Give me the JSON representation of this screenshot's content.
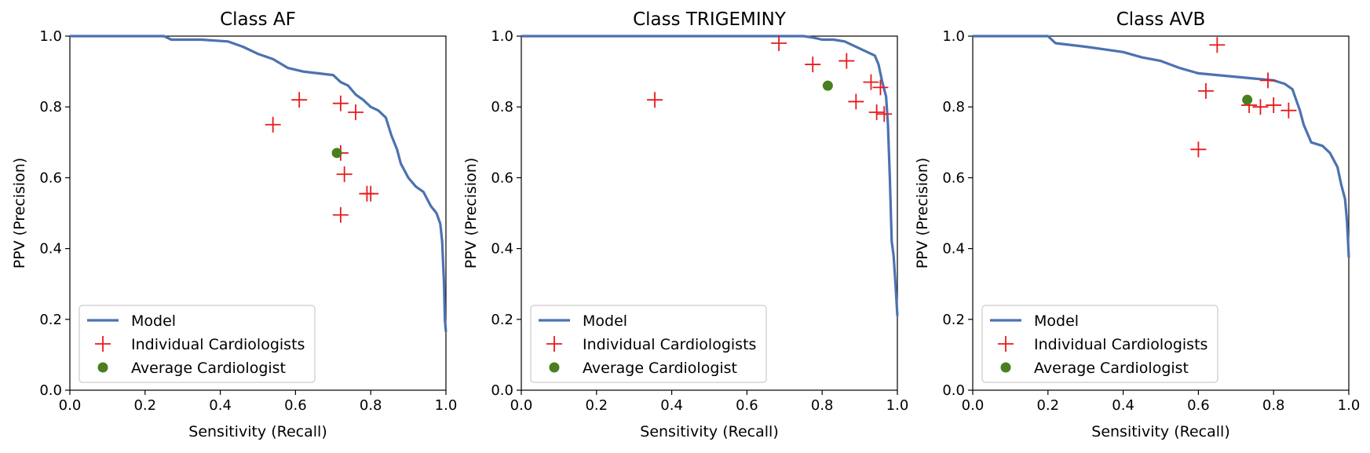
{
  "chart_data": [
    {
      "type": "line",
      "title": "Class AF",
      "xlabel": "Sensitivity (Recall)",
      "ylabel": "PPV (Precision)",
      "xlim": [
        0,
        1
      ],
      "ylim": [
        0,
        1
      ],
      "xticks": [
        "0.0",
        "0.2",
        "0.4",
        "0.6",
        "0.8",
        "1.0"
      ],
      "yticks": [
        "0.0",
        "0.2",
        "0.4",
        "0.6",
        "0.8",
        "1.0"
      ],
      "legend_position": "lower-left",
      "series": [
        {
          "name": "Model",
          "kind": "line",
          "color": "#4c72b0",
          "x": [
            0.0,
            0.25,
            0.27,
            0.35,
            0.42,
            0.46,
            0.5,
            0.54,
            0.58,
            0.62,
            0.66,
            0.7,
            0.72,
            0.74,
            0.76,
            0.78,
            0.8,
            0.82,
            0.84,
            0.855,
            0.87,
            0.88,
            0.9,
            0.92,
            0.94,
            0.96,
            0.975,
            0.985,
            0.99,
            0.995,
            0.997,
            1.0
          ],
          "y": [
            1.0,
            1.0,
            0.99,
            0.99,
            0.985,
            0.97,
            0.95,
            0.935,
            0.91,
            0.9,
            0.895,
            0.89,
            0.87,
            0.86,
            0.835,
            0.82,
            0.8,
            0.79,
            0.77,
            0.72,
            0.68,
            0.64,
            0.6,
            0.575,
            0.56,
            0.52,
            0.5,
            0.47,
            0.42,
            0.3,
            0.2,
            0.165
          ]
        },
        {
          "name": "Individual Cardiologists",
          "kind": "scatter",
          "marker": "+",
          "color": "#e8191c",
          "x": [
            0.54,
            0.61,
            0.72,
            0.76,
            0.72,
            0.73,
            0.79,
            0.8,
            0.72
          ],
          "y": [
            0.75,
            0.82,
            0.81,
            0.785,
            0.67,
            0.61,
            0.555,
            0.555,
            0.495
          ]
        },
        {
          "name": "Average Cardiologist",
          "kind": "scatter",
          "marker": "o",
          "color": "#4a7f1f",
          "x": [
            0.71
          ],
          "y": [
            0.67
          ]
        }
      ]
    },
    {
      "type": "line",
      "title": "Class TRIGEMINY",
      "xlabel": "Sensitivity (Recall)",
      "ylabel": "PPV (Precision)",
      "xlim": [
        0,
        1
      ],
      "ylim": [
        0,
        1
      ],
      "xticks": [
        "0.0",
        "0.2",
        "0.4",
        "0.6",
        "0.8",
        "1.0"
      ],
      "yticks": [
        "0.0",
        "0.2",
        "0.4",
        "0.6",
        "0.8",
        "1.0"
      ],
      "legend_position": "lower-left",
      "series": [
        {
          "name": "Model",
          "kind": "line",
          "color": "#4c72b0",
          "x": [
            0.0,
            0.5,
            0.7,
            0.75,
            0.78,
            0.8,
            0.83,
            0.86,
            0.88,
            0.9,
            0.92,
            0.94,
            0.95,
            0.96,
            0.97,
            0.975,
            0.98,
            0.985,
            0.99,
            0.995,
            1.0
          ],
          "y": [
            1.0,
            1.0,
            1.0,
            1.0,
            0.995,
            0.99,
            0.99,
            0.985,
            0.975,
            0.965,
            0.955,
            0.945,
            0.92,
            0.87,
            0.83,
            0.75,
            0.6,
            0.42,
            0.38,
            0.3,
            0.21
          ]
        },
        {
          "name": "Individual Cardiologists",
          "kind": "scatter",
          "marker": "+",
          "color": "#e8191c",
          "x": [
            0.355,
            0.685,
            0.775,
            0.865,
            0.93,
            0.955,
            0.89,
            0.945,
            0.965
          ],
          "y": [
            0.82,
            0.98,
            0.92,
            0.93,
            0.87,
            0.855,
            0.815,
            0.785,
            0.78
          ]
        },
        {
          "name": "Average Cardiologist",
          "kind": "scatter",
          "marker": "o",
          "color": "#4a7f1f",
          "x": [
            0.815
          ],
          "y": [
            0.86
          ]
        }
      ]
    },
    {
      "type": "line",
      "title": "Class AVB",
      "xlabel": "Sensitivity (Recall)",
      "ylabel": "PPV (Precision)",
      "xlim": [
        0,
        1
      ],
      "ylim": [
        0,
        1
      ],
      "xticks": [
        "0.0",
        "0.2",
        "0.4",
        "0.6",
        "0.8",
        "1.0"
      ],
      "yticks": [
        "0.0",
        "0.2",
        "0.4",
        "0.6",
        "0.8",
        "1.0"
      ],
      "legend_position": "lower-left",
      "series": [
        {
          "name": "Model",
          "kind": "line",
          "color": "#4c72b0",
          "x": [
            0.0,
            0.2,
            0.22,
            0.3,
            0.4,
            0.45,
            0.5,
            0.55,
            0.6,
            0.65,
            0.7,
            0.75,
            0.8,
            0.83,
            0.85,
            0.87,
            0.88,
            0.9,
            0.93,
            0.95,
            0.97,
            0.98,
            0.99,
            0.995,
            0.998,
            1.0
          ],
          "y": [
            1.0,
            1.0,
            0.98,
            0.97,
            0.955,
            0.94,
            0.93,
            0.91,
            0.895,
            0.89,
            0.885,
            0.88,
            0.875,
            0.865,
            0.85,
            0.79,
            0.75,
            0.7,
            0.69,
            0.67,
            0.63,
            0.58,
            0.54,
            0.48,
            0.42,
            0.375
          ]
        },
        {
          "name": "Individual Cardiologists",
          "kind": "scatter",
          "marker": "+",
          "color": "#e8191c",
          "x": [
            0.65,
            0.62,
            0.785,
            0.735,
            0.765,
            0.8,
            0.84,
            0.6
          ],
          "y": [
            0.975,
            0.845,
            0.875,
            0.805,
            0.8,
            0.805,
            0.79,
            0.68
          ]
        },
        {
          "name": "Average Cardiologist",
          "kind": "scatter",
          "marker": "o",
          "color": "#4a7f1f",
          "x": [
            0.73
          ],
          "y": [
            0.82
          ]
        }
      ]
    }
  ]
}
